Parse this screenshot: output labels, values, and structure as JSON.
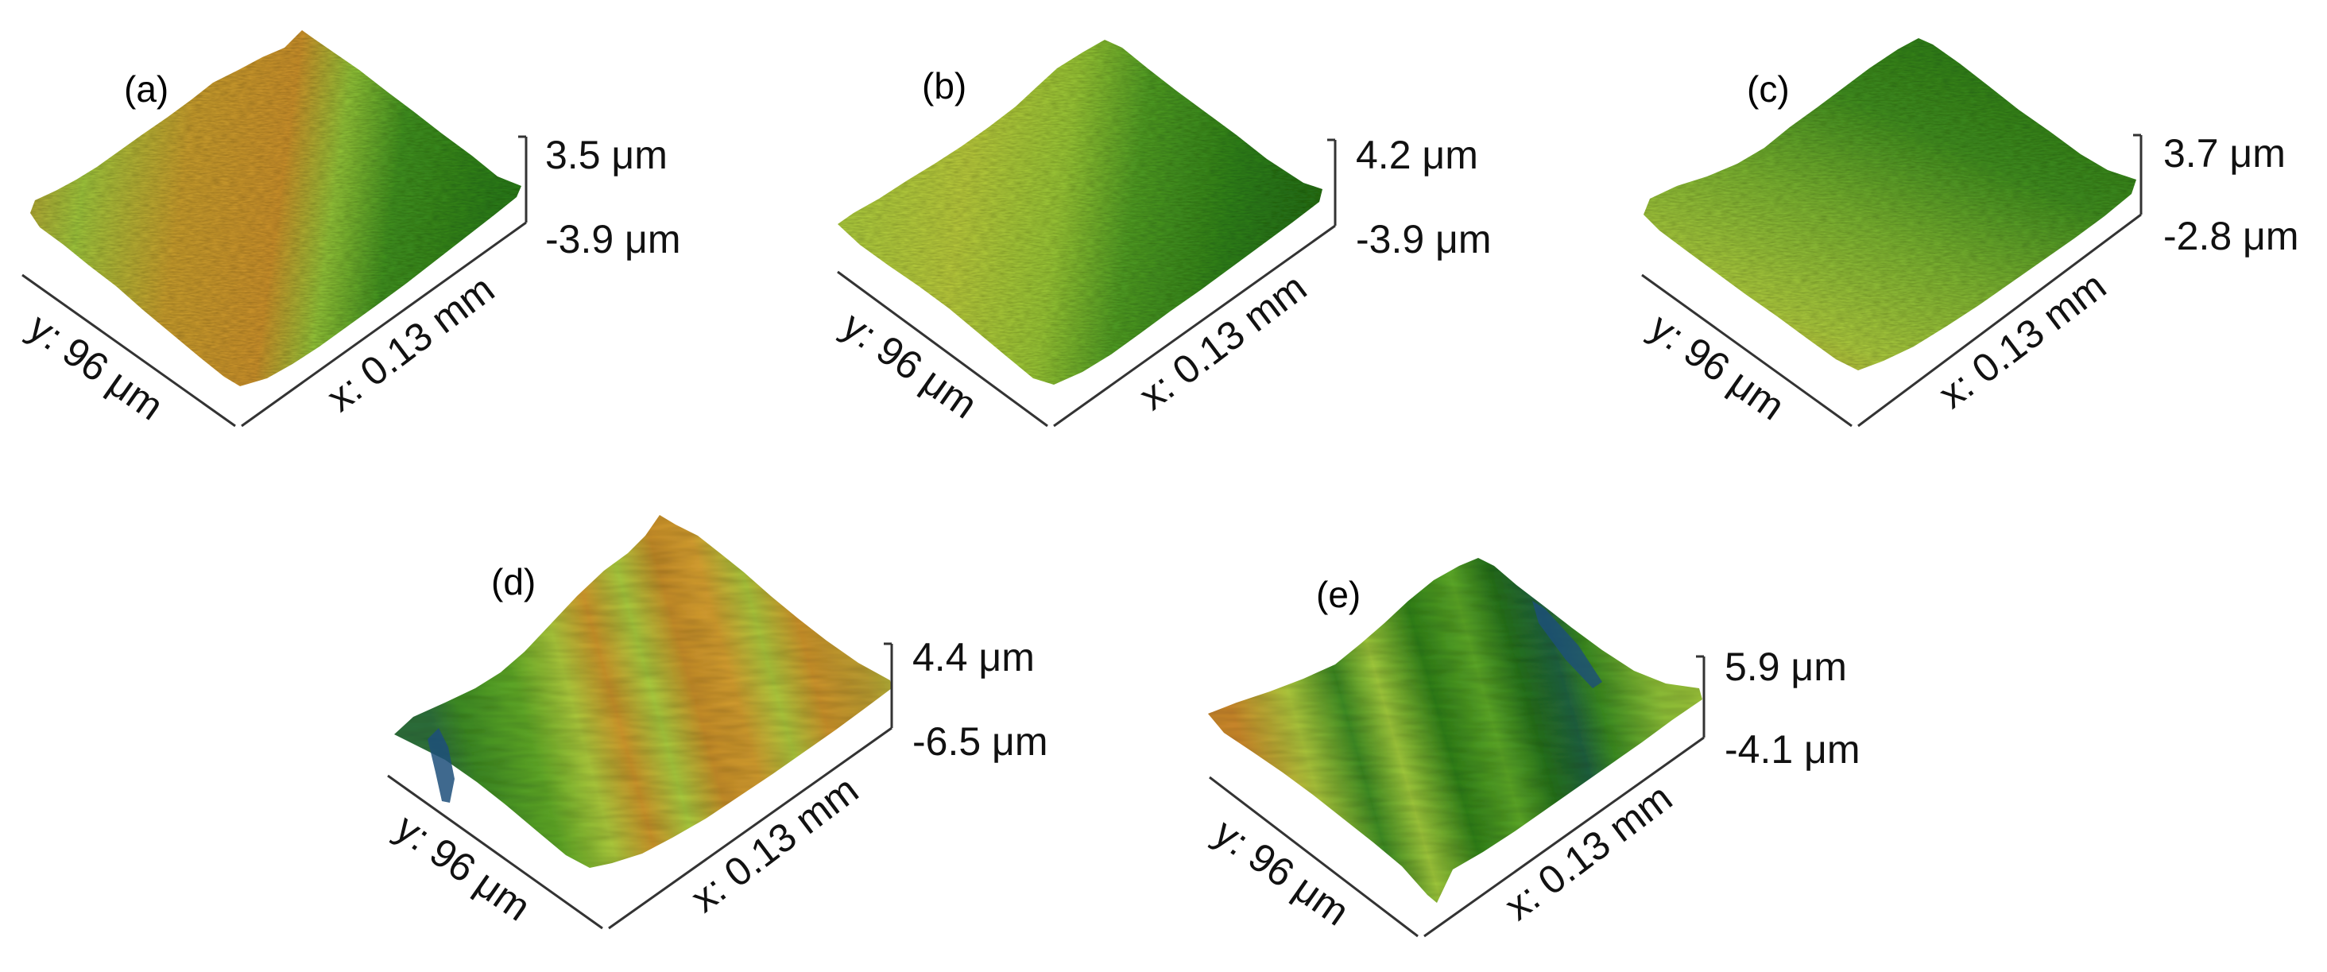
{
  "panels": [
    {
      "id": "a",
      "label": "(a)",
      "z_max": "3.5 μm",
      "z_min": "-3.9 μm",
      "x_axis": "x: 0.13 mm",
      "y_axis": "y: 96 μm"
    },
    {
      "id": "b",
      "label": "(b)",
      "z_max": "4.2 μm",
      "z_min": "-3.9 μm",
      "x_axis": "x: 0.13 mm",
      "y_axis": "y: 96 μm"
    },
    {
      "id": "c",
      "label": "(c)",
      "z_max": "3.7 μm",
      "z_min": "-2.8 μm",
      "x_axis": "x: 0.13 mm",
      "y_axis": "y: 96 μm"
    },
    {
      "id": "d",
      "label": "(d)",
      "z_max": "4.4 μm",
      "z_min": "-6.5 μm",
      "x_axis": "x: 0.13 mm",
      "y_axis": "y: 96 μm"
    },
    {
      "id": "e",
      "label": "(e)",
      "z_max": "5.9 μm",
      "z_min": "-4.1 μm",
      "x_axis": "x: 0.13 mm",
      "y_axis": "y: 96 μm"
    }
  ],
  "colors": {
    "orange": "#c8902a",
    "yellow_green": "#a4c83a",
    "green": "#4f9a22",
    "dark_green": "#1f6f14",
    "blue": "#1d4f7a"
  }
}
